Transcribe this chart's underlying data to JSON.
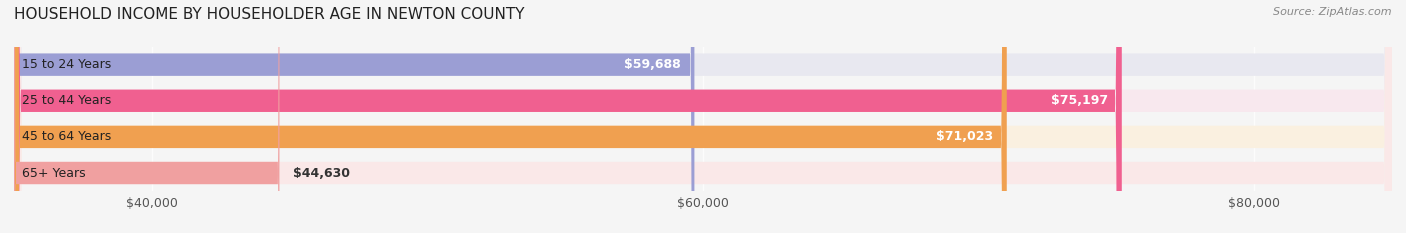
{
  "title": "HOUSEHOLD INCOME BY HOUSEHOLDER AGE IN NEWTON COUNTY",
  "source": "Source: ZipAtlas.com",
  "categories": [
    "15 to 24 Years",
    "25 to 44 Years",
    "45 to 64 Years",
    "65+ Years"
  ],
  "values": [
    59688,
    75197,
    71023,
    44630
  ],
  "bar_colors": [
    "#9b9ed4",
    "#f06090",
    "#f0a050",
    "#f0a0a0"
  ],
  "bar_bg_colors": [
    "#e8e8f0",
    "#f8e8ee",
    "#faf0e0",
    "#fae8e8"
  ],
  "value_labels": [
    "$59,688",
    "$75,197",
    "$71,023",
    "$44,630"
  ],
  "xmin": 35000,
  "xmax": 85000,
  "xticks": [
    40000,
    60000,
    80000
  ],
  "xtick_labels": [
    "$40,000",
    "$60,000",
    "$80,000"
  ],
  "title_fontsize": 11,
  "source_fontsize": 8,
  "label_fontsize": 9,
  "value_fontsize": 9,
  "figsize": [
    14.06,
    2.33
  ],
  "dpi": 100
}
